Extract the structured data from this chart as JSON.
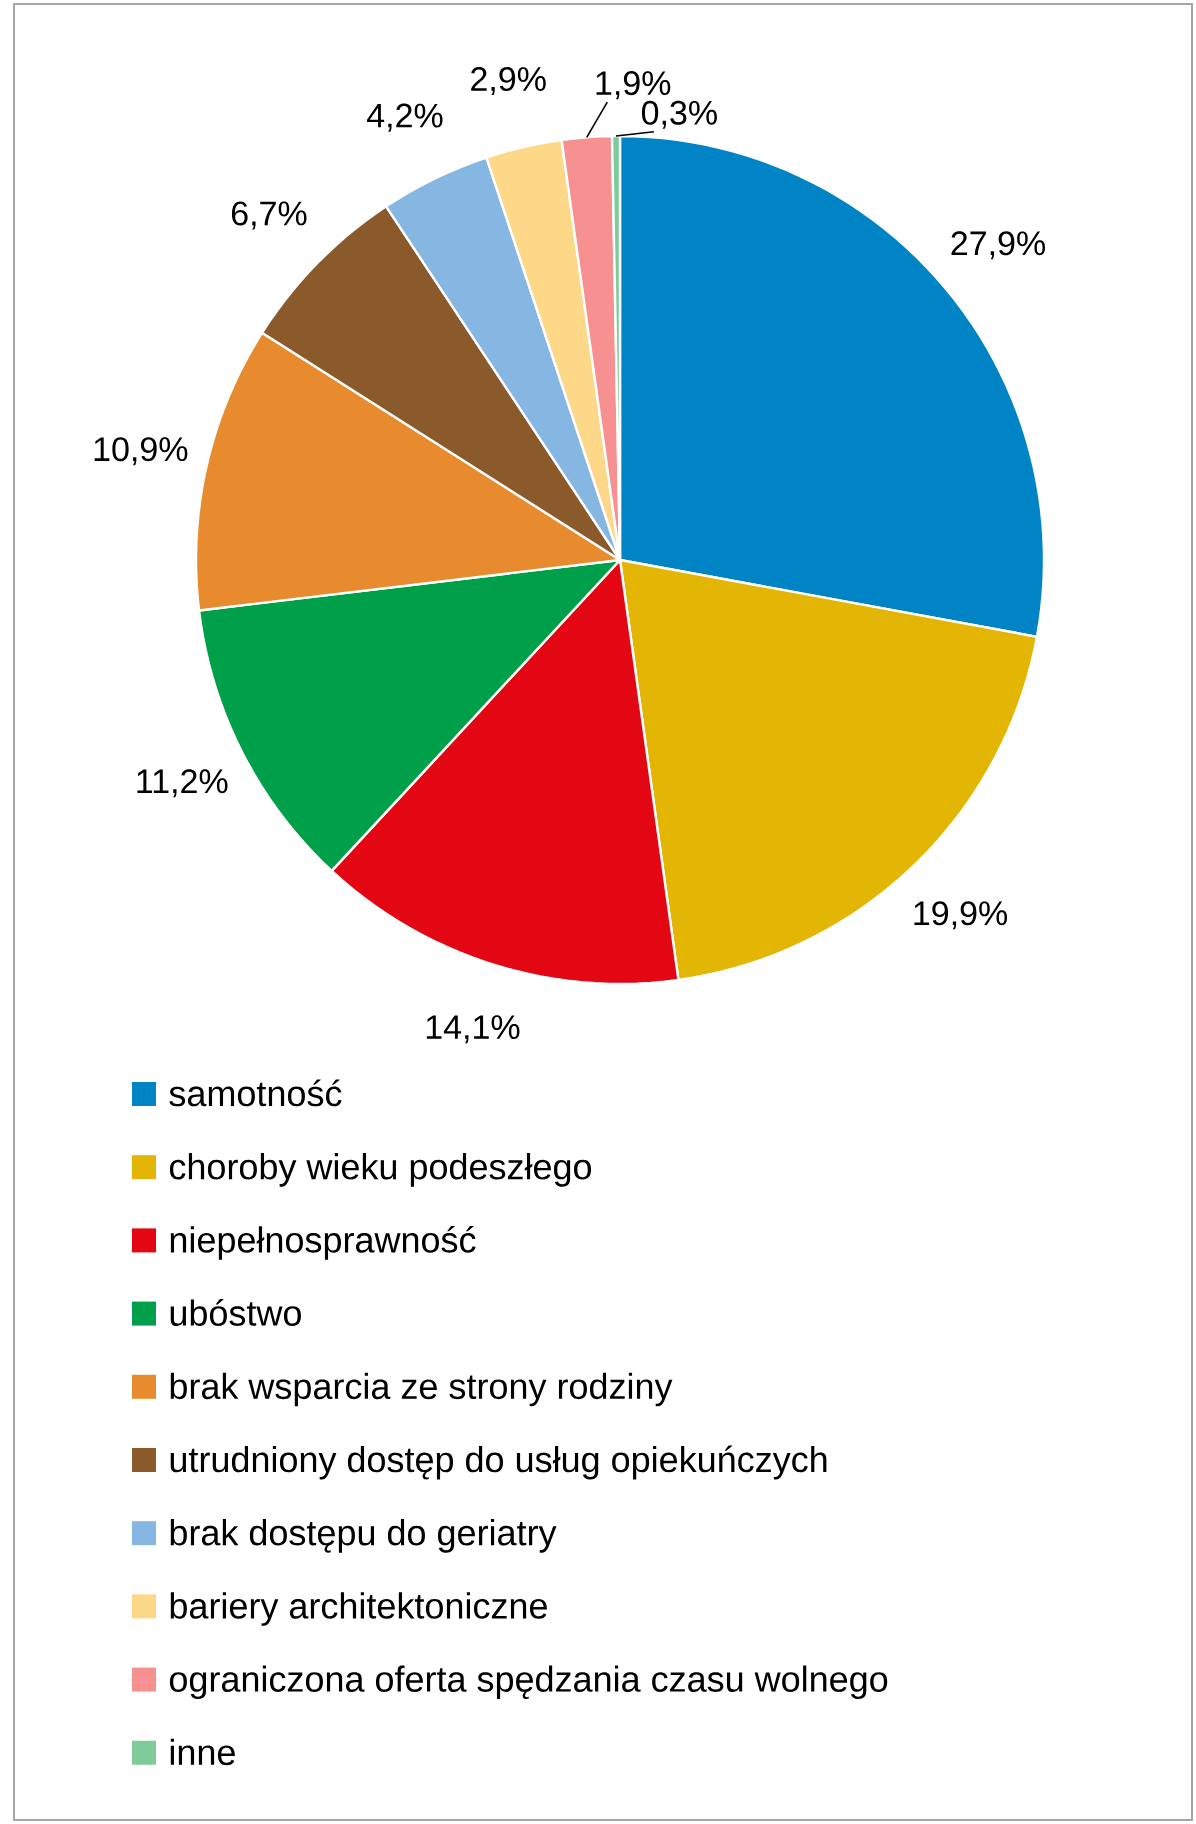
{
  "chart_data": {
    "type": "pie",
    "categories": [
      "samotność",
      "choroby wieku podeszłego",
      "niepełnosprawność",
      "ubóstwo",
      "brak wsparcia ze strony rodziny",
      "utrudniony dostęp do usług opiekuńczych",
      "brak dostępu do geriatry",
      "bariery architektoniczne",
      "ograniczona oferta spędzania czasu wolnego",
      "inne"
    ],
    "values": [
      27.9,
      19.9,
      14.1,
      11.2,
      10.9,
      6.7,
      4.2,
      2.9,
      1.9,
      0.3
    ],
    "value_labels": [
      "27,9%",
      "19,9%",
      "14,1%",
      "11,2%",
      "10,9%",
      "6,7%",
      "4,2%",
      "2,9%",
      "1,9%",
      "0,3%"
    ],
    "colors": [
      "#0084c5",
      "#e3b505",
      "#e30613",
      "#00a04a",
      "#e88a2e",
      "#8b5a2b",
      "#86b7e3",
      "#fdd888",
      "#f79191",
      "#7fcc9a"
    ],
    "legend": "bottom"
  }
}
